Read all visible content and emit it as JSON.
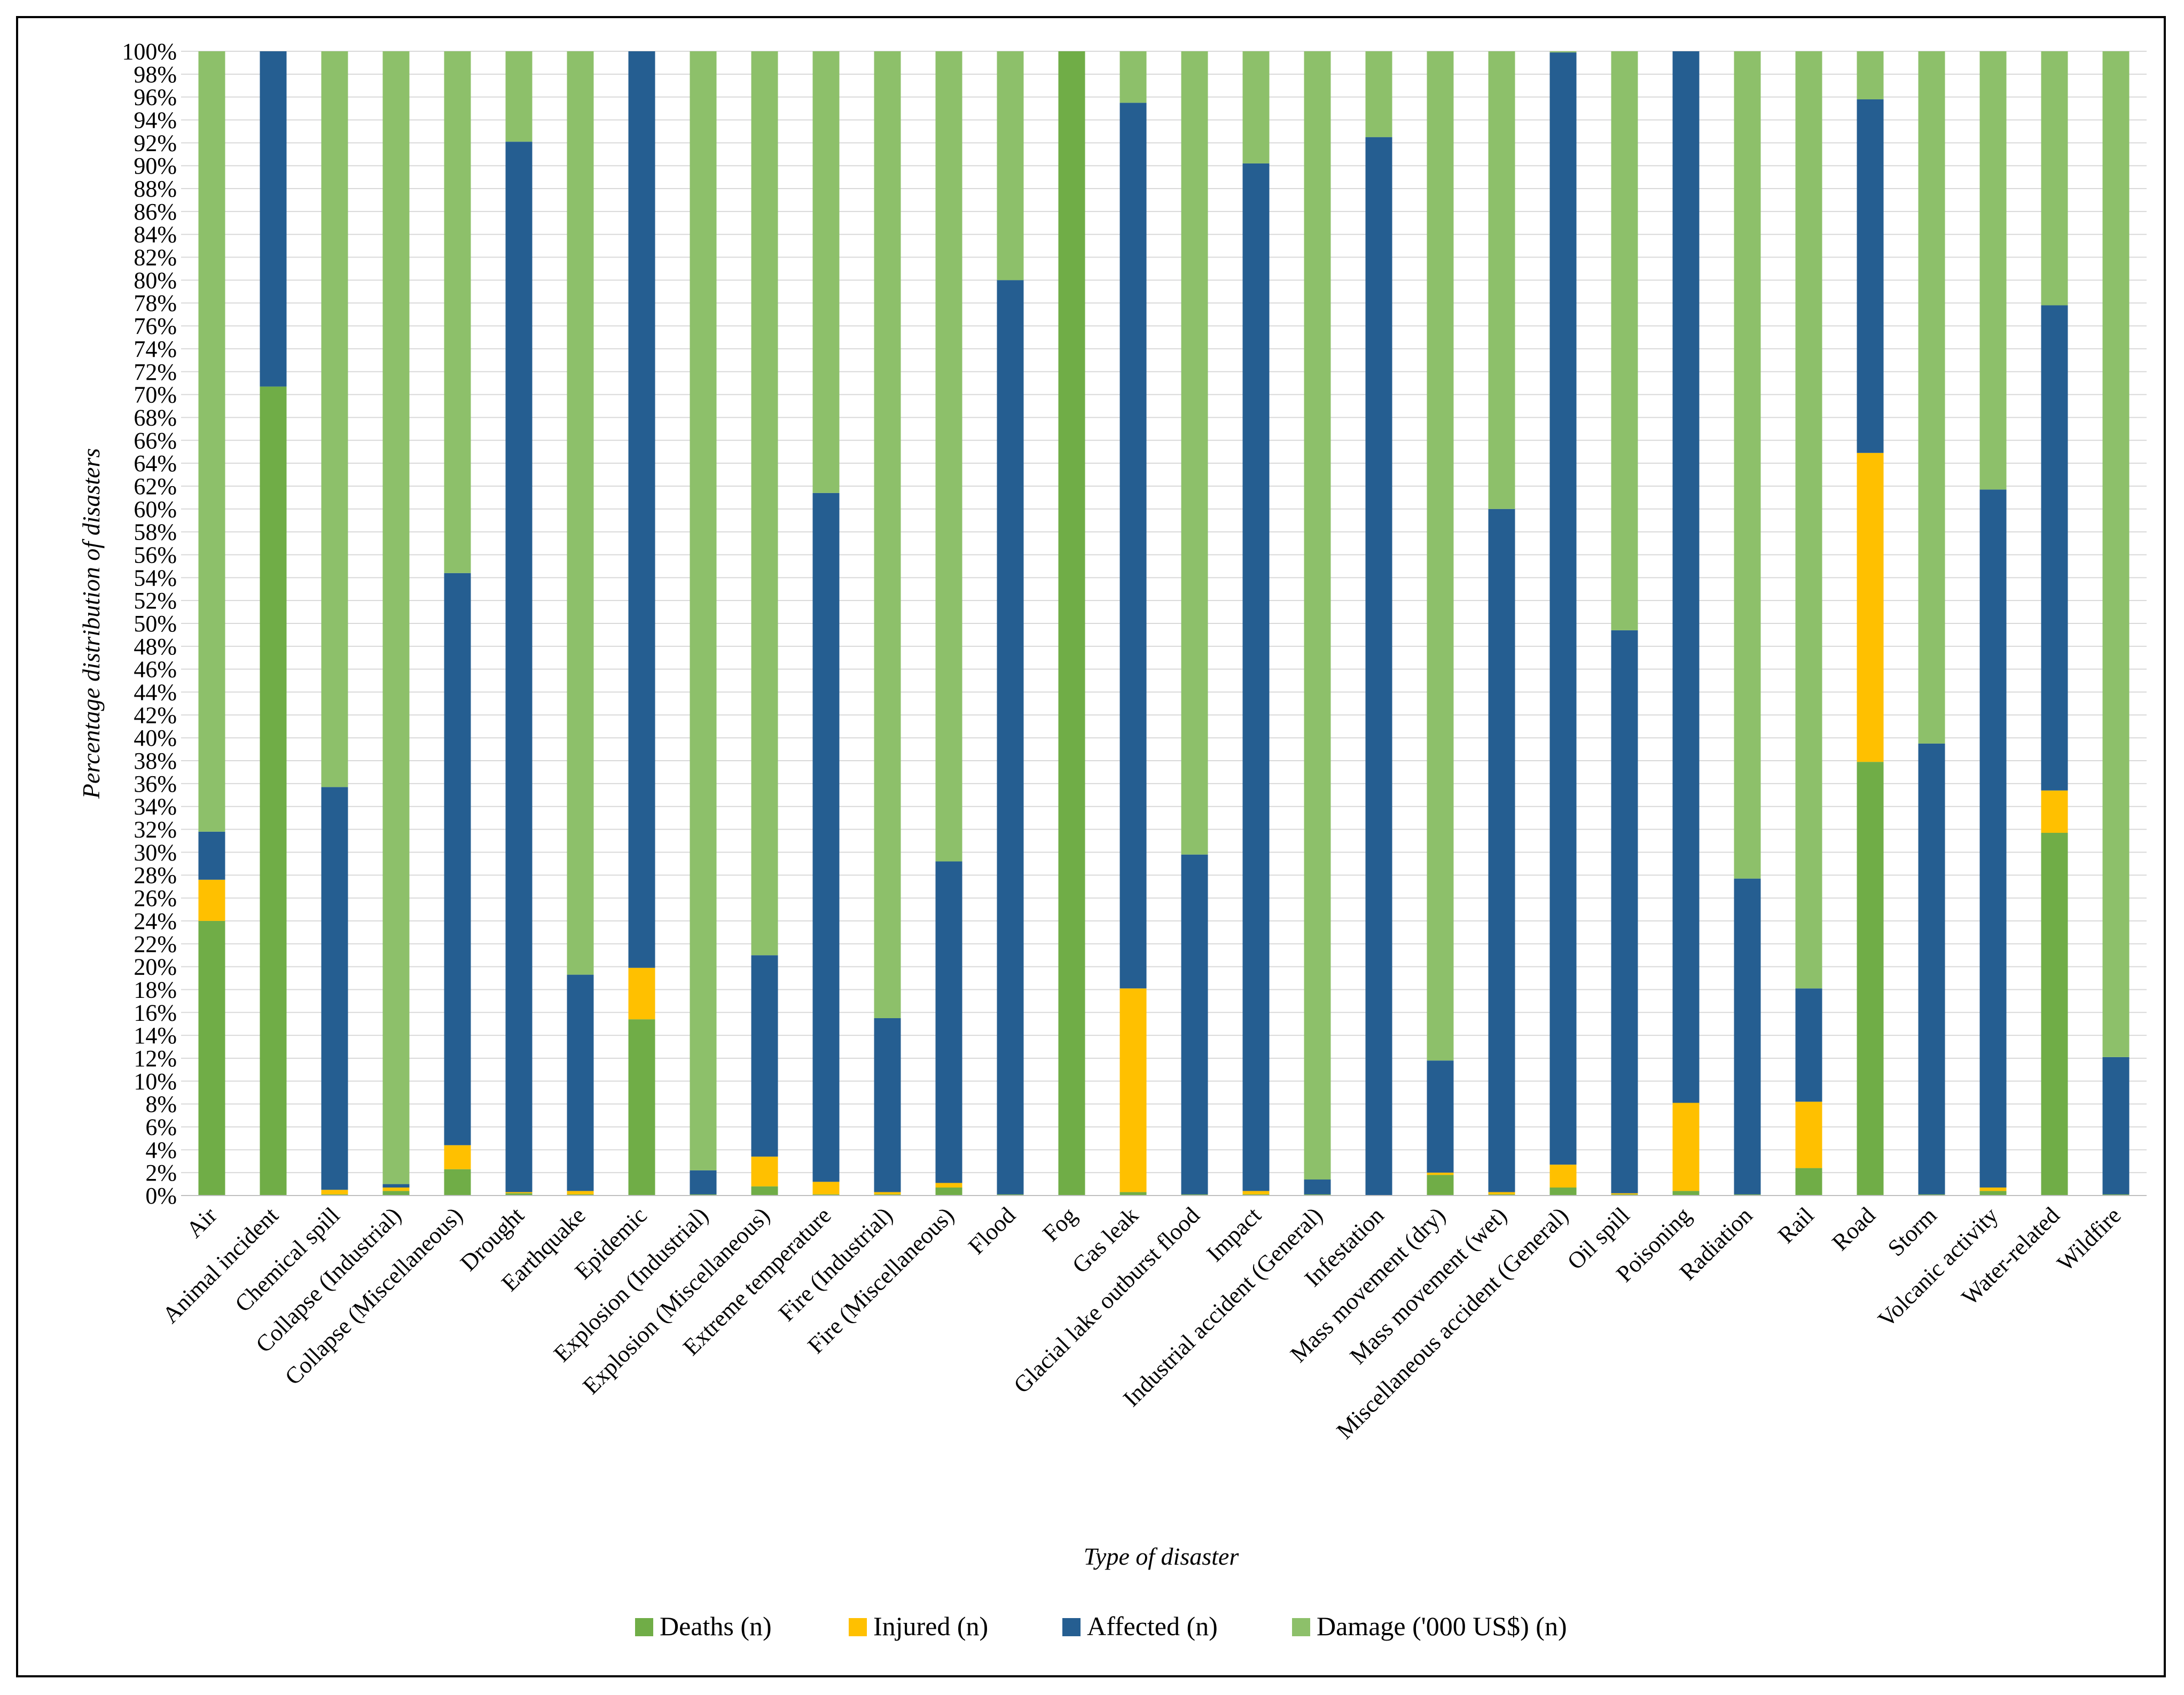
{
  "chart_data": {
    "type": "bar",
    "stacked": true,
    "normalized": true,
    "title": "",
    "xlabel": "Type of disaster",
    "ylabel": "Percentage distribution of disasters",
    "ylim": [
      0,
      100
    ],
    "ytick_step": 2,
    "ytick_suffix": "%",
    "grid": true,
    "legend_position": "bottom",
    "categories": [
      "Air",
      "Animal incident",
      "Chemical spill",
      "Collapse (Industrial)",
      "Collapse (Miscellaneous)",
      "Drought",
      "Earthquake",
      "Epidemic",
      "Explosion (Industrial)",
      "Explosion (Miscellaneous)",
      "Extreme temperature",
      "Fire (Industrial)",
      "Fire (Miscellaneous)",
      "Flood",
      "Fog",
      "Gas leak",
      "Glacial lake outburst flood",
      "Impact",
      "Industrial accident (General)",
      "Infestation",
      "Mass movement (dry)",
      "Mass movement (wet)",
      "Miscellaneous accident (General)",
      "Oil spill",
      "Poisoning",
      "Radiation",
      "Rail",
      "Road",
      "Storm",
      "Volcanic activity",
      "Water-related",
      "Wildfire"
    ],
    "series": [
      {
        "name": "Deaths (n)",
        "color": "#70AD47",
        "values": [
          24.0,
          70.7,
          0.1,
          0.4,
          2.3,
          0.2,
          0.1,
          15.4,
          0.1,
          0.8,
          0.1,
          0.1,
          0.7,
          0.1,
          100.0,
          0.3,
          0.1,
          0.1,
          0.1,
          0.0,
          1.8,
          0.1,
          0.7,
          0.1,
          0.4,
          0.1,
          2.4,
          37.9,
          0.1,
          0.4,
          31.7,
          0.1
        ]
      },
      {
        "name": "Injured (n)",
        "color": "#FFC000",
        "values": [
          3.6,
          0.0,
          0.4,
          0.3,
          2.1,
          0.1,
          0.3,
          4.5,
          0.0,
          2.6,
          1.1,
          0.2,
          0.4,
          0.0,
          0.0,
          17.8,
          0.0,
          0.3,
          0.0,
          0.0,
          0.2,
          0.2,
          2.0,
          0.1,
          7.7,
          0.0,
          5.8,
          27.0,
          0.0,
          0.3,
          3.7,
          0.0
        ]
      },
      {
        "name": "Affected (n)",
        "color": "#255E91",
        "values": [
          4.2,
          29.3,
          35.2,
          0.3,
          50.0,
          91.8,
          18.9,
          80.1,
          2.1,
          17.6,
          60.2,
          15.2,
          28.1,
          79.9,
          0.0,
          77.4,
          29.7,
          89.8,
          1.3,
          92.5,
          9.8,
          59.7,
          97.2,
          49.2,
          91.9,
          27.6,
          9.9,
          30.9,
          39.4,
          61.0,
          42.4,
          12.0
        ]
      },
      {
        "name": "Damage ('000 US$) (n)",
        "color": "#8DC06A",
        "values": [
          68.2,
          0.0,
          64.3,
          99.0,
          45.6,
          7.9,
          80.7,
          0.0,
          97.8,
          79.0,
          38.6,
          84.5,
          70.8,
          20.0,
          0.0,
          4.5,
          70.2,
          9.8,
          98.6,
          7.5,
          88.2,
          40.0,
          0.1,
          50.6,
          0.0,
          72.3,
          81.9,
          4.2,
          60.5,
          38.3,
          22.2,
          87.9
        ]
      }
    ]
  }
}
